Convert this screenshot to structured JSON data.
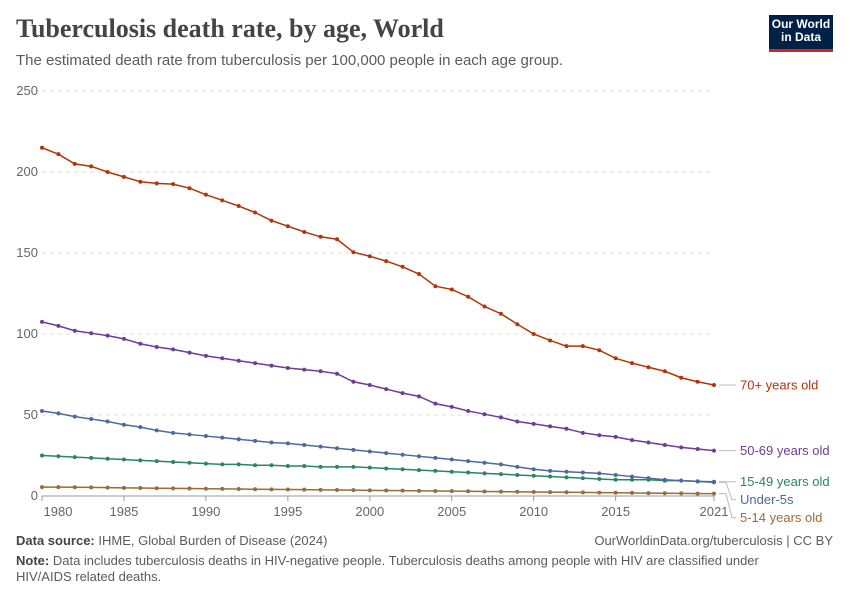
{
  "chart_data": {
    "type": "line",
    "title": "Tuberculosis death rate, by age, World",
    "subtitle": "The estimated death rate from tuberculosis per 100,000 people in each age group.",
    "logo": [
      "Our World",
      "in Data"
    ],
    "source_label": "Data source:",
    "source": "IHME, Global Burden of Disease (2024)",
    "url": "OurWorldinData.org/tuberculosis | CC BY",
    "note_label": "Note:",
    "note": "Data includes tuberculosis deaths in HIV-negative people. Tuberculosis deaths among people with HIV are classified under HIV/AIDS related deaths.",
    "x": [
      1980,
      1981,
      1982,
      1983,
      1984,
      1985,
      1986,
      1987,
      1988,
      1989,
      1990,
      1991,
      1992,
      1993,
      1994,
      1995,
      1996,
      1997,
      1998,
      1999,
      2000,
      2001,
      2002,
      2003,
      2004,
      2005,
      2006,
      2007,
      2008,
      2009,
      2010,
      2011,
      2012,
      2013,
      2014,
      2015,
      2016,
      2017,
      2018,
      2019,
      2020,
      2021
    ],
    "xlim": [
      1980,
      2021
    ],
    "xticks": [
      1980,
      1985,
      1990,
      1995,
      2000,
      2005,
      2010,
      2015,
      2021
    ],
    "ylim": [
      0,
      250
    ],
    "yticks": [
      0,
      50,
      100,
      150,
      200,
      250
    ],
    "grid": true,
    "series": [
      {
        "name": "70+ years old",
        "color": "#b13507",
        "values": [
          215,
          211,
          205,
          203.5,
          200,
          197,
          194,
          193,
          192.5,
          190,
          186,
          182.5,
          179,
          175,
          170,
          166.5,
          163,
          160,
          158.5,
          150.5,
          148,
          145,
          141.5,
          137,
          129.5,
          127.5,
          123,
          117,
          112.5,
          106,
          100,
          96,
          92.5,
          92.5,
          90,
          85,
          82,
          79.5,
          77,
          73,
          70.5,
          68.5
        ]
      },
      {
        "name": "50-69 years old",
        "color": "#6d3e91",
        "values": [
          107.5,
          105,
          102,
          100.5,
          99,
          97,
          94,
          92,
          90.5,
          88.5,
          86.5,
          85,
          83.5,
          82,
          80.5,
          79,
          78,
          77,
          75.5,
          70.5,
          68.5,
          66,
          63.5,
          61.5,
          57,
          55,
          52.5,
          50.5,
          48.5,
          46,
          44.5,
          43,
          41.5,
          39,
          37.5,
          36.5,
          34.5,
          33,
          31.5,
          30,
          29,
          28
        ]
      },
      {
        "name": "15-49 years old",
        "color": "#2c8465",
        "values": [
          25,
          24.5,
          24,
          23.5,
          23,
          22.5,
          22,
          21.5,
          21,
          20.5,
          20,
          19.5,
          19.5,
          19,
          19,
          18.5,
          18.5,
          18,
          18,
          18,
          17.5,
          17,
          16.5,
          16,
          15.5,
          15,
          14.5,
          14,
          13.5,
          13,
          12.5,
          12,
          11.5,
          11,
          10.5,
          10,
          10,
          10,
          9.5,
          9.5,
          9,
          8.8
        ]
      },
      {
        "name": "Under-5s",
        "color": "#4c6a9c",
        "values": [
          52.5,
          51,
          49,
          47.5,
          46,
          44,
          42.5,
          40.5,
          39,
          38,
          37,
          36,
          35,
          34,
          33,
          32.5,
          31.5,
          30.5,
          29.5,
          28.5,
          27.5,
          26.5,
          25.5,
          24.5,
          23.5,
          22.5,
          21.5,
          20.5,
          19.5,
          18,
          16.5,
          15.5,
          15,
          14.5,
          14,
          13,
          12,
          11,
          10,
          9.5,
          9,
          8.4
        ]
      },
      {
        "name": "5-14 years old",
        "color": "#996d39",
        "values": [
          5.5,
          5.5,
          5.4,
          5.3,
          5.2,
          5,
          4.9,
          4.8,
          4.7,
          4.6,
          4.5,
          4.4,
          4.3,
          4.2,
          4.1,
          4,
          3.9,
          3.8,
          3.7,
          3.6,
          3.5,
          3.4,
          3.3,
          3.2,
          3.1,
          3,
          2.9,
          2.8,
          2.7,
          2.6,
          2.5,
          2.4,
          2.3,
          2.2,
          2.1,
          2,
          1.9,
          1.8,
          1.7,
          1.6,
          1.5,
          1.5
        ]
      }
    ]
  }
}
